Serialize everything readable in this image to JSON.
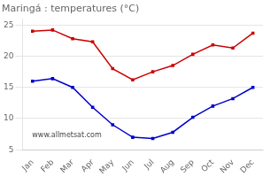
{
  "chart_data": {
    "type": "line",
    "title": "Maringá : temperatures (°C)",
    "categories": [
      "Jan",
      "Feb",
      "Mar",
      "Apr",
      "May",
      "Jun",
      "Jul",
      "Aug",
      "Sep",
      "Oct",
      "Nov",
      "Dec"
    ],
    "series": [
      {
        "color": "#cc0000",
        "values": [
          24.0,
          24.2,
          22.8,
          22.3,
          18.0,
          16.2,
          17.5,
          18.5,
          20.3,
          21.8,
          21.3,
          23.7
        ]
      },
      {
        "color": "#0000cc",
        "values": [
          16.0,
          16.4,
          15.0,
          11.8,
          9.0,
          7.0,
          6.8,
          7.8,
          10.2,
          12.0,
          13.2,
          15.0
        ]
      }
    ],
    "marker": "square",
    "ylim": [
      5,
      26
    ],
    "yticks": [
      5,
      10,
      15,
      20,
      25
    ],
    "grid": "y",
    "annotation": "www.allmetsat.com"
  }
}
